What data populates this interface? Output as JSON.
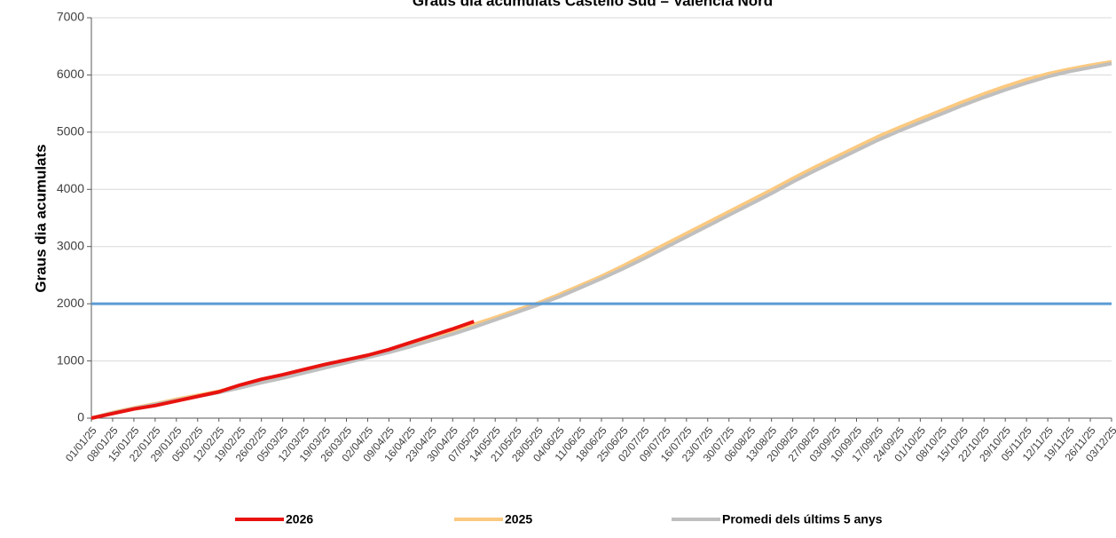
{
  "chart_data": {
    "type": "line",
    "title": "Graus dia acumulats Castelló Sud – València Nord",
    "y_label": "Graus dia acumulats",
    "categories": [
      "01/01/25",
      "08/01/25",
      "15/01/25",
      "22/01/25",
      "29/01/25",
      "05/02/25",
      "12/02/25",
      "19/02/25",
      "26/02/25",
      "05/03/25",
      "12/03/25",
      "19/03/25",
      "26/03/25",
      "02/04/25",
      "09/04/25",
      "16/04/25",
      "23/04/25",
      "30/04/25",
      "07/05/25",
      "14/05/25",
      "21/05/25",
      "28/05/25",
      "04/06/25",
      "11/06/25",
      "18/06/25",
      "25/06/25",
      "02/07/25",
      "09/07/25",
      "16/07/25",
      "23/07/25",
      "30/07/25",
      "06/08/25",
      "13/08/25",
      "20/08/25",
      "27/08/25",
      "03/09/25",
      "10/09/25",
      "17/09/25",
      "24/09/25",
      "01/10/25",
      "08/10/25",
      "15/10/25",
      "22/10/25",
      "29/10/25",
      "05/11/25",
      "12/11/25",
      "19/11/25",
      "26/11/25",
      "03/12/25"
    ],
    "series": [
      {
        "name": "2025",
        "color": "#fbc97f",
        "values": [
          0,
          100,
          180,
          250,
          330,
          400,
          470,
          560,
          650,
          730,
          820,
          910,
          1000,
          1090,
          1190,
          1300,
          1410,
          1520,
          1640,
          1760,
          1890,
          2010,
          2160,
          2320,
          2480,
          2660,
          2850,
          3040,
          3230,
          3420,
          3610,
          3800,
          3990,
          4190,
          4380,
          4560,
          4740,
          4920,
          5080,
          5230,
          5380,
          5530,
          5670,
          5800,
          5920,
          6020,
          6100,
          6170,
          6230
        ]
      },
      {
        "name": "Promedi dels últims 5 anys",
        "color": "#bfbfbf",
        "values": [
          0,
          90,
          170,
          240,
          310,
          380,
          450,
          530,
          620,
          700,
          790,
          880,
          970,
          1060,
          1150,
          1250,
          1360,
          1470,
          1590,
          1720,
          1850,
          1980,
          2120,
          2280,
          2440,
          2610,
          2790,
          2980,
          3170,
          3360,
          3550,
          3740,
          3930,
          4130,
          4320,
          4500,
          4680,
          4860,
          5020,
          5170,
          5320,
          5470,
          5610,
          5740,
          5860,
          5970,
          6060,
          6130,
          6200
        ]
      },
      {
        "name": "2026",
        "color": "#e8130f",
        "values": [
          0,
          80,
          160,
          220,
          300,
          380,
          460,
          580,
          680,
          760,
          850,
          940,
          1020,
          1100,
          1200,
          1320,
          1440,
          1560,
          1690,
          null,
          null,
          null,
          null,
          null,
          null,
          null,
          null,
          null,
          null,
          null,
          null,
          null,
          null,
          null,
          null,
          null,
          null,
          null,
          null,
          null,
          null,
          null,
          null,
          null,
          null,
          null,
          null,
          null,
          null
        ]
      }
    ],
    "legend_order": [
      2,
      0,
      1
    ],
    "threshold": {
      "value": 2000,
      "color": "#5b9bd5"
    },
    "ylim": [
      0,
      7000
    ],
    "yticks": [
      0,
      1000,
      2000,
      3000,
      4000,
      5000,
      6000,
      7000
    ],
    "grid": true
  }
}
